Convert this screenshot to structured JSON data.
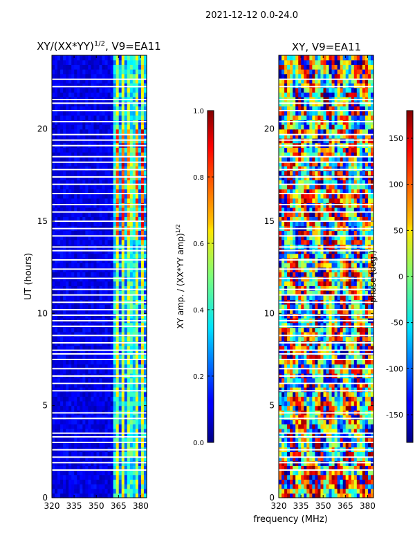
{
  "suptitle": "2021-12-12 0.0-24.0",
  "xlabel": "frequency (MHz)",
  "chart_data": [
    {
      "type": "heatmap",
      "title": "XY/(XX*YY)",
      "title_exponent": "1/2",
      "title_suffix": ", V9=EA11",
      "xlabel": "",
      "ylabel": "UT (hours)",
      "xlim": [
        320,
        384
      ],
      "ylim": [
        0,
        24
      ],
      "xticks": [
        "320",
        "335",
        "350",
        "365",
        "380"
      ],
      "yticks": [
        "0",
        "5",
        "10",
        "15",
        "20"
      ],
      "colorbar": {
        "label": "XY amp. / (XX*YY amp)",
        "label_exponent": "1/2",
        "range": [
          0.0,
          1.0
        ],
        "ticks": [
          "0.0",
          "0.2",
          "0.4",
          "0.6",
          "0.8",
          "1.0"
        ],
        "colormap": "jet"
      },
      "features": {
        "background_level": 0.05,
        "high_band_MHz": [
          361,
          384
        ],
        "high_band_level": 0.55,
        "peak_level_hours": [
          14,
          20
        ],
        "peak_level": 0.8
      }
    },
    {
      "type": "heatmap",
      "title": "XY, V9=EA11",
      "xlabel": "",
      "ylabel": "",
      "xlim": [
        320,
        384
      ],
      "ylim": [
        0,
        24
      ],
      "xticks": [
        "320",
        "335",
        "350",
        "365",
        "380"
      ],
      "yticks": [
        "0",
        "5",
        "10",
        "15",
        "20"
      ],
      "colorbar": {
        "label": "phase (deg.)",
        "range": [
          -180,
          180
        ],
        "ticks": [
          "-150",
          "-100",
          "-50",
          "0",
          "50",
          "100",
          "150"
        ],
        "colormap": "jet"
      }
    }
  ],
  "gap_hours": [
    1.5,
    1.9,
    2.2,
    2.6,
    3.0,
    3.3,
    3.5,
    4.3,
    4.6,
    5.8,
    6.2,
    6.6,
    7.0,
    7.5,
    7.8,
    8.0,
    8.4,
    8.8,
    9.3,
    9.6,
    9.9,
    10.2,
    10.6,
    11.0,
    11.3,
    11.9,
    12.4,
    12.9,
    13.4,
    13.6,
    14.2,
    14.6,
    15.0,
    15.5,
    15.9,
    16.5,
    17.0,
    17.4,
    17.8,
    18.2,
    18.5,
    19.1,
    19.4,
    19.7,
    20.4,
    21.0,
    21.4,
    21.6,
    22.3,
    22.7
  ]
}
